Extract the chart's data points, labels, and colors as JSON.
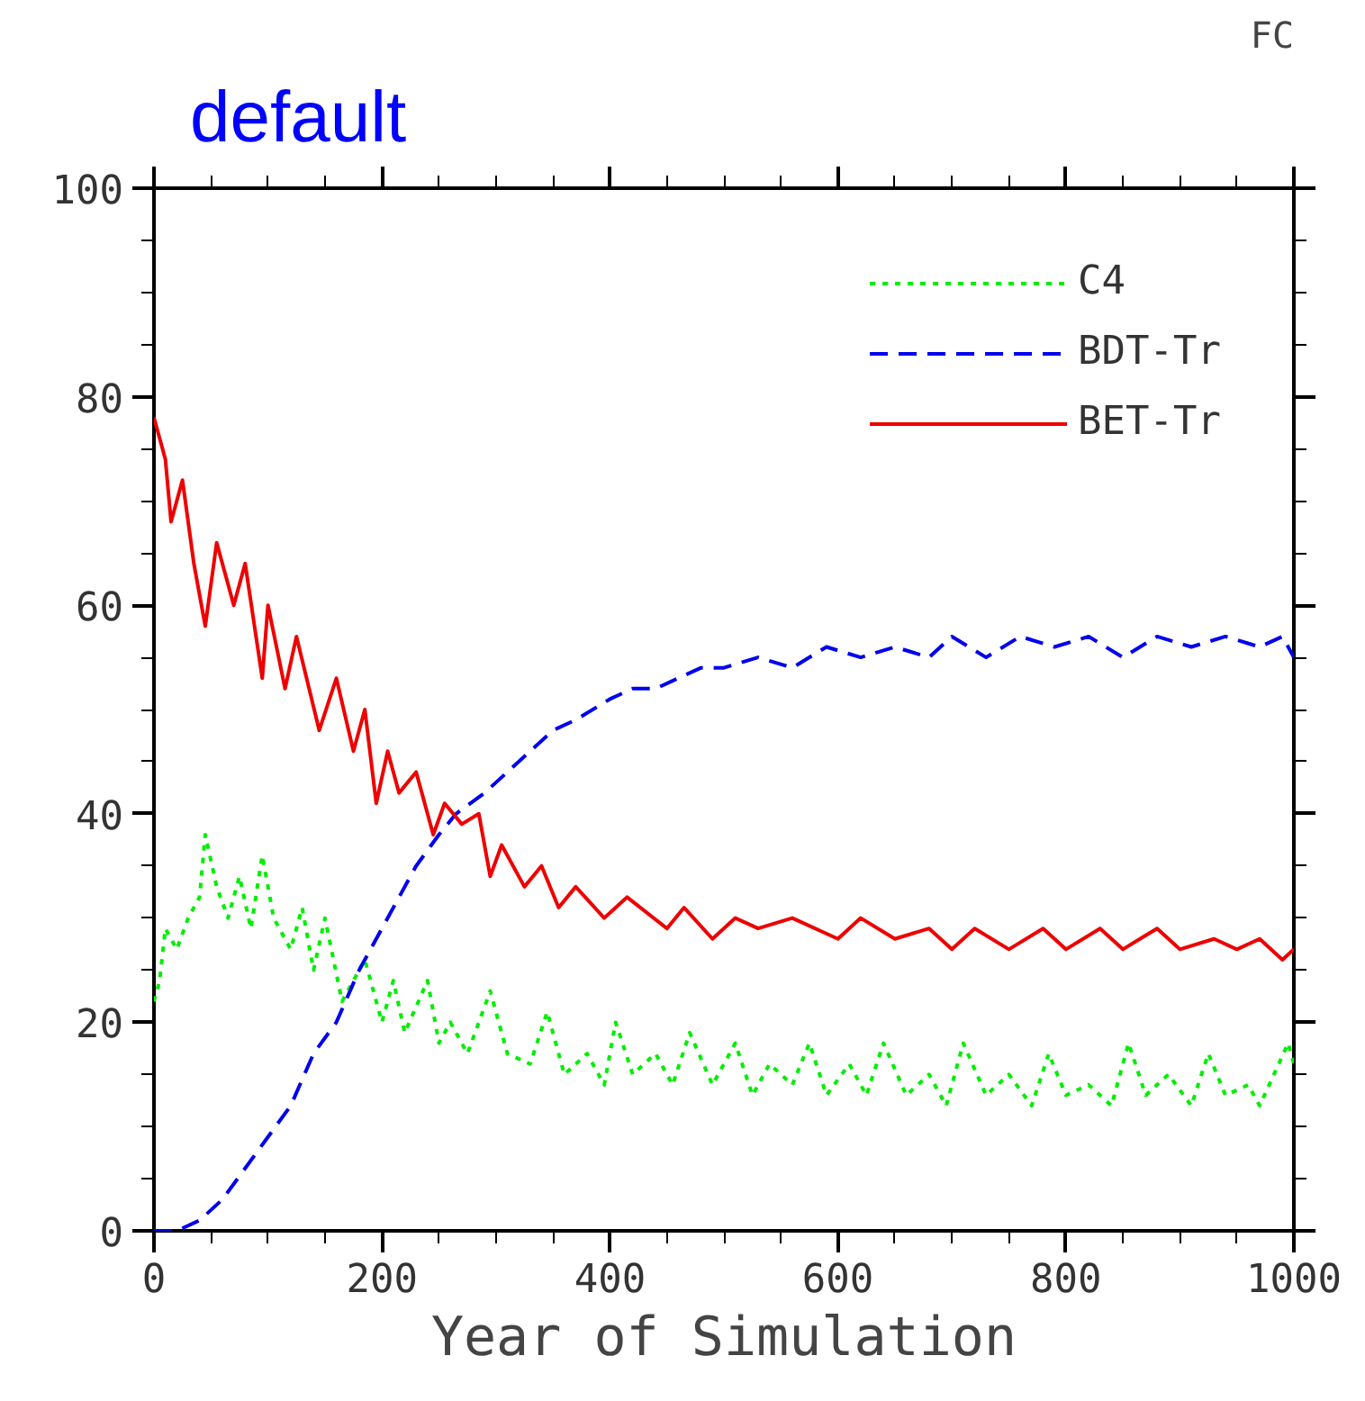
{
  "chart_data": {
    "type": "line",
    "title": "default",
    "xlabel": "Year of Simulation",
    "annotations": [
      "FC"
    ],
    "xlim": [
      0,
      1000
    ],
    "xticks": [
      0,
      200,
      400,
      600,
      800,
      1000
    ],
    "ylim": [
      0,
      100
    ],
    "yticks": [
      0,
      20,
      40,
      60,
      80,
      100
    ],
    "grid": false,
    "legend": "top right",
    "series": [
      {
        "name": "C4",
        "color": "#00ee00",
        "line_style": "dotted",
        "x": [
          0,
          5,
          10,
          20,
          30,
          40,
          45,
          55,
          65,
          75,
          85,
          95,
          105,
          120,
          130,
          140,
          150,
          165,
          185,
          200,
          210,
          220,
          240,
          250,
          260,
          275,
          295,
          310,
          330,
          345,
          360,
          380,
          395,
          405,
          420,
          440,
          455,
          470,
          490,
          510,
          525,
          540,
          560,
          575,
          590,
          610,
          625,
          640,
          660,
          680,
          695,
          710,
          730,
          750,
          770,
          785,
          800,
          820,
          840,
          855,
          870,
          890,
          910,
          925,
          940,
          960,
          970,
          995,
          1000
        ],
        "values": [
          22,
          24,
          29,
          27,
          30,
          32,
          38,
          33,
          30,
          34,
          29,
          36,
          30,
          27,
          31,
          25,
          30,
          22,
          26,
          20,
          24,
          19,
          24,
          18,
          20,
          17,
          23,
          17,
          16,
          21,
          15,
          17,
          14,
          20,
          15,
          17,
          14,
          19,
          14,
          18,
          13,
          16,
          14,
          18,
          13,
          16,
          13,
          18,
          13,
          15,
          12,
          18,
          13,
          15,
          12,
          17,
          13,
          14,
          12,
          18,
          13,
          15,
          12,
          17,
          13,
          14,
          12,
          18,
          16
        ]
      },
      {
        "name": "BDT-Tr",
        "color": "#0000ee",
        "line_style": "dashed",
        "x": [
          0,
          20,
          40,
          60,
          80,
          100,
          120,
          140,
          160,
          180,
          200,
          215,
          230,
          250,
          265,
          290,
          310,
          330,
          350,
          370,
          400,
          420,
          440,
          460,
          480,
          500,
          530,
          560,
          590,
          620,
          650,
          680,
          700,
          730,
          760,
          790,
          820,
          850,
          880,
          910,
          940,
          970,
          990,
          1000
        ],
        "values": [
          0,
          0,
          1,
          3,
          6,
          9,
          12,
          17,
          20,
          25,
          29,
          32,
          35,
          38,
          40,
          42,
          44,
          46,
          48,
          49,
          51,
          52,
          52,
          53,
          54,
          54,
          55,
          54,
          56,
          55,
          56,
          55,
          57,
          55,
          57,
          56,
          57,
          55,
          57,
          56,
          57,
          56,
          57,
          55
        ]
      },
      {
        "name": "BET-Tr",
        "color": "#ee0000",
        "line_style": "solid",
        "x": [
          0,
          10,
          15,
          25,
          35,
          45,
          55,
          70,
          80,
          95,
          100,
          115,
          125,
          145,
          160,
          175,
          185,
          195,
          205,
          215,
          230,
          245,
          255,
          270,
          285,
          295,
          305,
          325,
          340,
          355,
          370,
          395,
          415,
          450,
          465,
          490,
          510,
          530,
          560,
          600,
          620,
          650,
          680,
          700,
          720,
          750,
          780,
          800,
          830,
          850,
          880,
          900,
          930,
          950,
          970,
          990,
          1000
        ],
        "values": [
          78,
          74,
          68,
          72,
          64,
          58,
          66,
          60,
          64,
          53,
          60,
          52,
          57,
          48,
          53,
          46,
          50,
          41,
          46,
          42,
          44,
          38,
          41,
          39,
          40,
          34,
          37,
          33,
          35,
          31,
          33,
          30,
          32,
          29,
          31,
          28,
          30,
          29,
          30,
          28,
          30,
          28,
          29,
          27,
          29,
          27,
          29,
          27,
          29,
          27,
          29,
          27,
          28,
          27,
          28,
          26,
          27
        ]
      }
    ]
  }
}
